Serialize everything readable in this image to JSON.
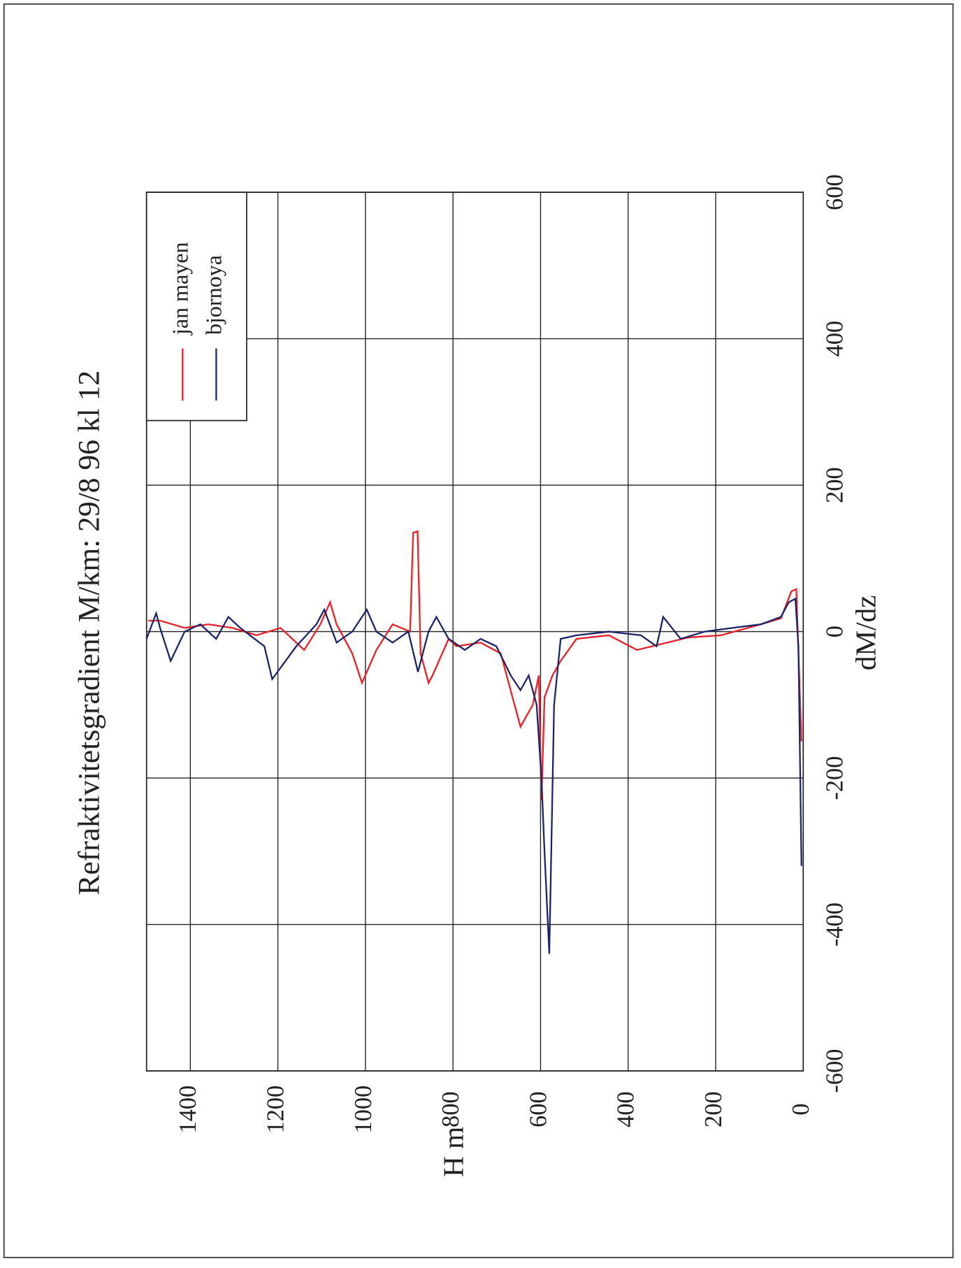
{
  "chart_data": {
    "type": "line",
    "title": "Refraktivitetsgradient M/km: 29/8 96 kl 12",
    "x_label": "H m",
    "y_label": "dM/dz",
    "xlim": [
      0,
      1500
    ],
    "ylim": [
      -600,
      600
    ],
    "xticks": [
      0,
      200,
      400,
      600,
      800,
      1000,
      1200,
      1400
    ],
    "yticks": [
      -600,
      -400,
      -200,
      0,
      200,
      400,
      600
    ],
    "grid": true,
    "legend": "upper right",
    "series": [
      {
        "name": "jan mayen",
        "color": "#e8202a",
        "x": [
          4,
          16,
          27,
          51,
          97,
          188,
          262,
          380,
          444,
          518,
          554,
          573,
          591,
          598,
          604,
          618,
          646,
          664,
          691,
          737,
          792,
          810,
          847,
          856,
          874,
          881,
          891,
          898,
          938,
          975,
          1008,
          1030,
          1066,
          1081,
          1103,
          1140,
          1194,
          1249,
          1304,
          1359,
          1413,
          1469,
          1496
        ],
        "values": [
          -150,
          58,
          55,
          18,
          10,
          -5,
          -8,
          -25,
          -5,
          -10,
          -40,
          -60,
          -90,
          -230,
          -60,
          -100,
          -130,
          -90,
          -30,
          -15,
          -20,
          -10,
          -60,
          -70,
          -30,
          137,
          135,
          0,
          10,
          -25,
          -70,
          -30,
          10,
          40,
          10,
          -25,
          5,
          -5,
          5,
          10,
          5,
          15,
          15
        ]
      },
      {
        "name": "bjornoya",
        "color": "#1c2466",
        "x": [
          4,
          11,
          18,
          33,
          51,
          97,
          161,
          225,
          280,
          320,
          335,
          371,
          444,
          518,
          554,
          569,
          580,
          591,
          598,
          609,
          627,
          646,
          668,
          701,
          737,
          773,
          810,
          838,
          856,
          880,
          902,
          938,
          975,
          997,
          1030,
          1066,
          1094,
          1112,
          1158,
          1213,
          1231,
          1286,
          1313,
          1341,
          1377,
          1413,
          1445,
          1469,
          1478,
          1500
        ],
        "values": [
          -320,
          -20,
          45,
          40,
          20,
          10,
          5,
          0,
          -10,
          20,
          -20,
          -5,
          0,
          -5,
          -10,
          -100,
          -440,
          -300,
          -200,
          -100,
          -60,
          -80,
          -60,
          -20,
          -10,
          -25,
          -10,
          20,
          0,
          -55,
          0,
          -15,
          0,
          30,
          0,
          -15,
          30,
          10,
          -20,
          -65,
          -20,
          5,
          20,
          -10,
          10,
          0,
          -40,
          5,
          25,
          -10
        ]
      }
    ]
  }
}
